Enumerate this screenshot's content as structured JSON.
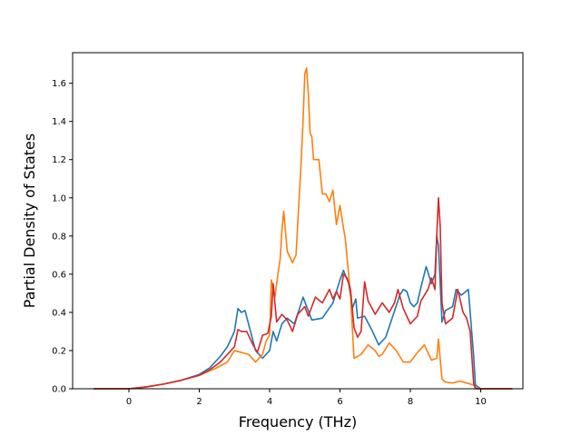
{
  "chart_data": {
    "type": "line",
    "title": "",
    "xlabel": "Frequency (THz)",
    "ylabel": "Partial Density of States",
    "xlim": [
      -1.6,
      11.2
    ],
    "ylim": [
      0.0,
      1.76
    ],
    "x_ticks": [
      0,
      2,
      4,
      6,
      8,
      10
    ],
    "y_ticks": [
      0.0,
      0.2,
      0.4,
      0.6,
      0.8,
      1.0,
      1.2,
      1.4,
      1.6
    ],
    "x_tick_labels": [
      "0",
      "2",
      "4",
      "6",
      "8",
      "10"
    ],
    "y_tick_labels": [
      "0.0",
      "0.2",
      "0.4",
      "0.6",
      "0.8",
      "1.0",
      "1.2",
      "1.4",
      "1.6"
    ],
    "grid": false,
    "legend": "none",
    "series": [
      {
        "color": "#1f77b4",
        "points": [
          [
            -1.0,
            0.0
          ],
          [
            0.0,
            0.0
          ],
          [
            0.5,
            0.01
          ],
          [
            1.0,
            0.025
          ],
          [
            1.5,
            0.045
          ],
          [
            2.0,
            0.075
          ],
          [
            2.3,
            0.11
          ],
          [
            2.6,
            0.17
          ],
          [
            2.8,
            0.22
          ],
          [
            3.0,
            0.3
          ],
          [
            3.1,
            0.42
          ],
          [
            3.2,
            0.4
          ],
          [
            3.3,
            0.41
          ],
          [
            3.5,
            0.27
          ],
          [
            3.6,
            0.2
          ],
          [
            3.8,
            0.16
          ],
          [
            4.0,
            0.2
          ],
          [
            4.1,
            0.3
          ],
          [
            4.2,
            0.25
          ],
          [
            4.35,
            0.34
          ],
          [
            4.5,
            0.37
          ],
          [
            4.7,
            0.34
          ],
          [
            4.85,
            0.42
          ],
          [
            4.95,
            0.48
          ],
          [
            5.2,
            0.36
          ],
          [
            5.5,
            0.37
          ],
          [
            5.8,
            0.45
          ],
          [
            6.0,
            0.57
          ],
          [
            6.1,
            0.62
          ],
          [
            6.25,
            0.55
          ],
          [
            6.35,
            0.42
          ],
          [
            6.45,
            0.47
          ],
          [
            6.5,
            0.37
          ],
          [
            6.7,
            0.38
          ],
          [
            6.9,
            0.31
          ],
          [
            7.1,
            0.23
          ],
          [
            7.3,
            0.27
          ],
          [
            7.5,
            0.38
          ],
          [
            7.7,
            0.49
          ],
          [
            7.8,
            0.52
          ],
          [
            7.9,
            0.51
          ],
          [
            8.0,
            0.45
          ],
          [
            8.1,
            0.43
          ],
          [
            8.2,
            0.45
          ],
          [
            8.3,
            0.53
          ],
          [
            8.45,
            0.64
          ],
          [
            8.6,
            0.55
          ],
          [
            8.7,
            0.6
          ],
          [
            8.75,
            0.8
          ],
          [
            8.8,
            0.75
          ],
          [
            8.9,
            0.35
          ],
          [
            9.0,
            0.41
          ],
          [
            9.2,
            0.43
          ],
          [
            9.3,
            0.52
          ],
          [
            9.45,
            0.49
          ],
          [
            9.65,
            0.52
          ],
          [
            9.8,
            0.17
          ],
          [
            9.85,
            0.02
          ],
          [
            10.0,
            0.0
          ],
          [
            10.9,
            0.0
          ]
        ]
      },
      {
        "color": "#ff7f0e",
        "points": [
          [
            -1.0,
            0.0
          ],
          [
            0.0,
            0.0
          ],
          [
            0.5,
            0.01
          ],
          [
            1.0,
            0.025
          ],
          [
            1.5,
            0.045
          ],
          [
            2.0,
            0.07
          ],
          [
            2.5,
            0.11
          ],
          [
            2.8,
            0.14
          ],
          [
            3.0,
            0.2
          ],
          [
            3.2,
            0.19
          ],
          [
            3.4,
            0.18
          ],
          [
            3.6,
            0.14
          ],
          [
            3.8,
            0.18
          ],
          [
            3.9,
            0.25
          ],
          [
            4.0,
            0.28
          ],
          [
            4.05,
            0.57
          ],
          [
            4.15,
            0.48
          ],
          [
            4.25,
            0.62
          ],
          [
            4.3,
            0.68
          ],
          [
            4.35,
            0.83
          ],
          [
            4.4,
            0.93
          ],
          [
            4.5,
            0.72
          ],
          [
            4.65,
            0.66
          ],
          [
            4.75,
            0.7
          ],
          [
            4.9,
            1.2
          ],
          [
            4.95,
            1.4
          ],
          [
            5.0,
            1.65
          ],
          [
            5.05,
            1.68
          ],
          [
            5.1,
            1.55
          ],
          [
            5.15,
            1.34
          ],
          [
            5.2,
            1.32
          ],
          [
            5.25,
            1.2
          ],
          [
            5.4,
            1.2
          ],
          [
            5.5,
            1.02
          ],
          [
            5.6,
            1.02
          ],
          [
            5.7,
            0.98
          ],
          [
            5.8,
            1.04
          ],
          [
            5.9,
            0.86
          ],
          [
            6.0,
            0.96
          ],
          [
            6.1,
            0.84
          ],
          [
            6.15,
            0.79
          ],
          [
            6.3,
            0.49
          ],
          [
            6.4,
            0.16
          ],
          [
            6.6,
            0.18
          ],
          [
            6.8,
            0.23
          ],
          [
            7.0,
            0.2
          ],
          [
            7.1,
            0.17
          ],
          [
            7.2,
            0.18
          ],
          [
            7.4,
            0.24
          ],
          [
            7.6,
            0.2
          ],
          [
            7.7,
            0.17
          ],
          [
            7.8,
            0.14
          ],
          [
            8.0,
            0.14
          ],
          [
            8.2,
            0.19
          ],
          [
            8.4,
            0.23
          ],
          [
            8.6,
            0.15
          ],
          [
            8.75,
            0.16
          ],
          [
            8.8,
            0.26
          ],
          [
            8.9,
            0.05
          ],
          [
            9.0,
            0.035
          ],
          [
            9.2,
            0.03
          ],
          [
            9.4,
            0.04
          ],
          [
            9.6,
            0.03
          ],
          [
            9.8,
            0.02
          ],
          [
            9.9,
            0.0
          ],
          [
            10.9,
            0.0
          ]
        ]
      },
      {
        "color": "#d62728",
        "points": [
          [
            -1.0,
            0.0
          ],
          [
            0.0,
            0.0
          ],
          [
            0.5,
            0.01
          ],
          [
            1.0,
            0.025
          ],
          [
            1.5,
            0.045
          ],
          [
            2.0,
            0.07
          ],
          [
            2.3,
            0.1
          ],
          [
            2.6,
            0.14
          ],
          [
            2.8,
            0.18
          ],
          [
            3.0,
            0.22
          ],
          [
            3.1,
            0.31
          ],
          [
            3.2,
            0.3
          ],
          [
            3.35,
            0.3
          ],
          [
            3.5,
            0.24
          ],
          [
            3.65,
            0.19
          ],
          [
            3.8,
            0.28
          ],
          [
            3.95,
            0.29
          ],
          [
            4.05,
            0.38
          ],
          [
            4.1,
            0.55
          ],
          [
            4.2,
            0.35
          ],
          [
            4.35,
            0.39
          ],
          [
            4.5,
            0.36
          ],
          [
            4.65,
            0.3
          ],
          [
            4.8,
            0.39
          ],
          [
            5.0,
            0.43
          ],
          [
            5.1,
            0.38
          ],
          [
            5.3,
            0.48
          ],
          [
            5.5,
            0.45
          ],
          [
            5.7,
            0.52
          ],
          [
            5.8,
            0.47
          ],
          [
            5.9,
            0.51
          ],
          [
            6.0,
            0.47
          ],
          [
            6.1,
            0.6
          ],
          [
            6.2,
            0.58
          ],
          [
            6.3,
            0.52
          ],
          [
            6.4,
            0.32
          ],
          [
            6.5,
            0.27
          ],
          [
            6.6,
            0.3
          ],
          [
            6.7,
            0.56
          ],
          [
            6.8,
            0.46
          ],
          [
            7.0,
            0.39
          ],
          [
            7.2,
            0.45
          ],
          [
            7.4,
            0.4
          ],
          [
            7.55,
            0.45
          ],
          [
            7.65,
            0.52
          ],
          [
            7.8,
            0.42
          ],
          [
            8.0,
            0.34
          ],
          [
            8.2,
            0.38
          ],
          [
            8.3,
            0.46
          ],
          [
            8.5,
            0.52
          ],
          [
            8.6,
            0.58
          ],
          [
            8.7,
            0.52
          ],
          [
            8.75,
            0.8
          ],
          [
            8.8,
            1.0
          ],
          [
            8.85,
            0.85
          ],
          [
            8.9,
            0.45
          ],
          [
            9.0,
            0.34
          ],
          [
            9.2,
            0.37
          ],
          [
            9.35,
            0.52
          ],
          [
            9.5,
            0.4
          ],
          [
            9.6,
            0.37
          ],
          [
            9.7,
            0.3
          ],
          [
            9.8,
            0.03
          ],
          [
            9.85,
            0.0
          ],
          [
            10.9,
            0.0
          ]
        ]
      }
    ]
  }
}
